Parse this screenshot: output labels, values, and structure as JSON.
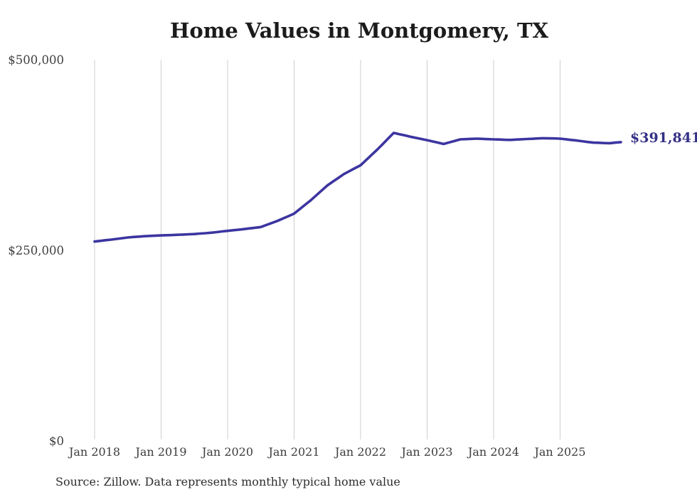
{
  "colors": {
    "line": "#3c35a0",
    "end_label": "#343086",
    "grid": "#cfcfcf",
    "title_text": "#1b1b1b",
    "axis_text": "#3c3c3c",
    "background": "#ffffff"
  },
  "chart_data": {
    "type": "line",
    "title": "Home Values in Montgomery, TX",
    "series_name": "Monthly typical home value",
    "frequency": "monthly",
    "start_month": "2018-01",
    "end_month": "2025-12",
    "values": [
      261500,
      262300,
      263200,
      264000,
      264900,
      265900,
      266800,
      267400,
      267900,
      268500,
      268800,
      269200,
      269500,
      269800,
      270000,
      270300,
      270600,
      271000,
      271300,
      271900,
      272400,
      273000,
      273800,
      274700,
      275500,
      276300,
      277000,
      277800,
      278700,
      279600,
      280500,
      283200,
      285800,
      288500,
      291700,
      294800,
      298000,
      303800,
      309700,
      315500,
      322000,
      328500,
      335000,
      340000,
      345000,
      350000,
      353800,
      357700,
      361500,
      368300,
      375200,
      382000,
      389300,
      396700,
      404000,
      402300,
      400700,
      399000,
      397500,
      396000,
      394500,
      392800,
      391200,
      389500,
      391500,
      393500,
      395500,
      395800,
      396200,
      396500,
      396200,
      395800,
      395500,
      395300,
      395000,
      394800,
      395200,
      395600,
      396000,
      396300,
      396700,
      397000,
      396800,
      396700,
      396500,
      395700,
      394800,
      394000,
      393100,
      392100,
      391200,
      391000,
      390700,
      390500,
      391200,
      391841
    ],
    "latest_value": 391841,
    "latest_label": "$391,841",
    "x_tick_labels": [
      "Jan 2018",
      "Jan 2019",
      "Jan 2020",
      "Jan 2021",
      "Jan 2022",
      "Jan 2023",
      "Jan 2024",
      "Jan 2025"
    ],
    "y_ticks": [
      0,
      250000,
      500000
    ],
    "y_tick_labels": [
      "$0",
      "$250,000",
      "$500,000"
    ],
    "ylim": [
      0,
      500000
    ],
    "grid": "vertical-only",
    "legend": "none",
    "source_note": "Source: Zillow. Data represents monthly typical home value"
  }
}
